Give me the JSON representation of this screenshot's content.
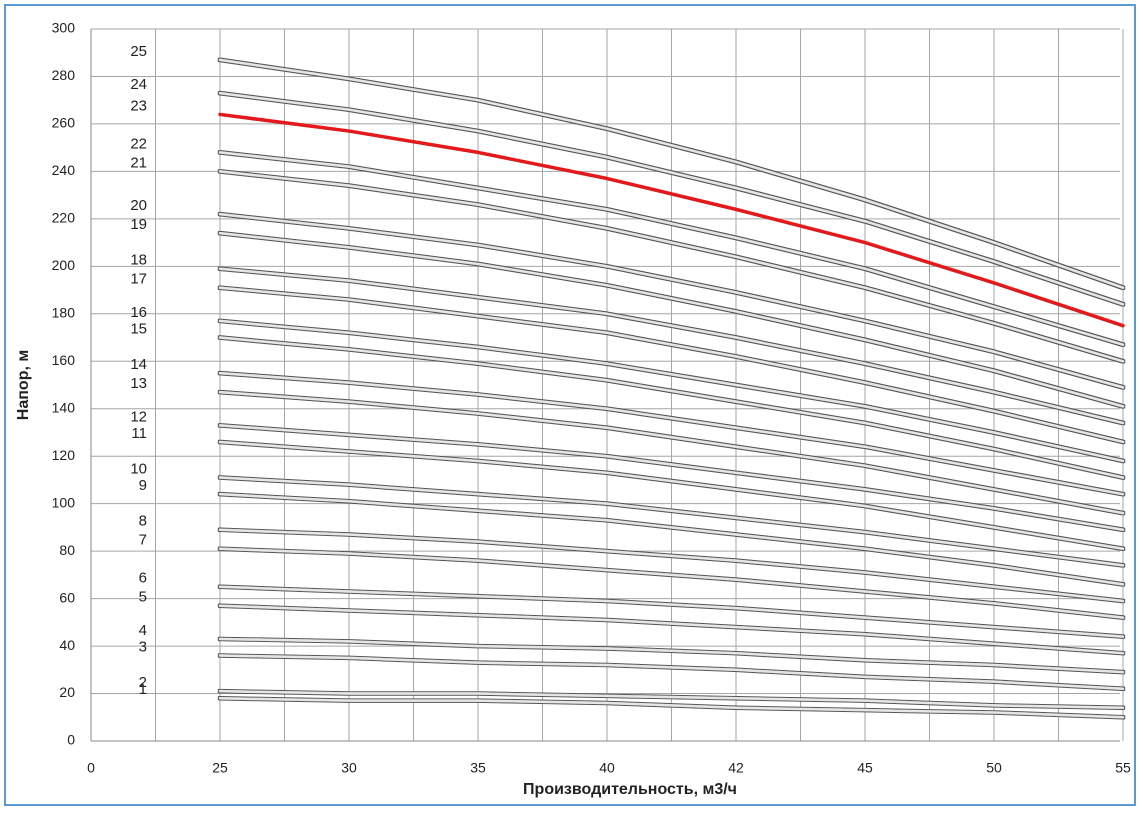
{
  "chart_data": {
    "type": "line",
    "x_label": "Производительность, м3/ч",
    "y_label": "Напор, м",
    "categories": [
      "0",
      "25",
      "30",
      "35",
      "40",
      "42",
      "45",
      "50",
      "55"
    ],
    "ylim": [
      0,
      300
    ],
    "yticks": [
      0,
      20,
      40,
      60,
      80,
      100,
      120,
      140,
      160,
      180,
      200,
      220,
      240,
      260,
      280,
      300
    ],
    "grid": true,
    "series": [
      {
        "name": "1",
        "color": "#e6e6e6",
        "values": [
          null,
          18,
          17,
          17,
          16,
          14,
          13,
          12,
          10
        ]
      },
      {
        "name": "2",
        "color": "#e6e6e6",
        "values": [
          null,
          21,
          20,
          20,
          19,
          18,
          17,
          15,
          14
        ]
      },
      {
        "name": "3",
        "color": "#e6e6e6",
        "values": [
          null,
          36,
          35,
          33,
          32,
          30,
          27,
          25,
          22
        ]
      },
      {
        "name": "4",
        "color": "#e6e6e6",
        "values": [
          null,
          43,
          42,
          40,
          39,
          37,
          34,
          32,
          29
        ]
      },
      {
        "name": "5",
        "color": "#e6e6e6",
        "values": [
          null,
          57,
          55,
          53,
          51,
          48,
          45,
          41,
          37
        ]
      },
      {
        "name": "6",
        "color": "#e6e6e6",
        "values": [
          null,
          65,
          63,
          61,
          59,
          56,
          52,
          48,
          44
        ]
      },
      {
        "name": "7",
        "color": "#e6e6e6",
        "values": [
          null,
          81,
          79,
          76,
          72,
          68,
          63,
          58,
          52
        ]
      },
      {
        "name": "8",
        "color": "#e6e6e6",
        "values": [
          null,
          89,
          87,
          84,
          80,
          76,
          71,
          65,
          59
        ]
      },
      {
        "name": "9",
        "color": "#e6e6e6",
        "values": [
          null,
          104,
          101,
          97,
          93,
          87,
          81,
          74,
          66
        ]
      },
      {
        "name": "10",
        "color": "#e6e6e6",
        "values": [
          null,
          111,
          108,
          104,
          100,
          94,
          88,
          81,
          74
        ]
      },
      {
        "name": "11",
        "color": "#e6e6e6",
        "values": [
          null,
          126,
          122,
          118,
          113,
          106,
          99,
          90,
          81
        ]
      },
      {
        "name": "12",
        "color": "#e6e6e6",
        "values": [
          null,
          133,
          129,
          125,
          120,
          113,
          106,
          98,
          89
        ]
      },
      {
        "name": "13",
        "color": "#e6e6e6",
        "values": [
          null,
          147,
          143,
          138,
          132,
          124,
          116,
          106,
          96
        ]
      },
      {
        "name": "14",
        "color": "#e6e6e6",
        "values": [
          null,
          155,
          151,
          146,
          140,
          132,
          124,
          114,
          104
        ]
      },
      {
        "name": "15",
        "color": "#e6e6e6",
        "values": [
          null,
          170,
          165,
          159,
          152,
          143,
          134,
          123,
          111
        ]
      },
      {
        "name": "16",
        "color": "#e6e6e6",
        "values": [
          null,
          177,
          172,
          166,
          159,
          150,
          141,
          130,
          118
        ]
      },
      {
        "name": "17",
        "color": "#e6e6e6",
        "values": [
          null,
          191,
          186,
          179,
          172,
          162,
          151,
          139,
          126
        ]
      },
      {
        "name": "18",
        "color": "#e6e6e6",
        "values": [
          null,
          199,
          194,
          187,
          180,
          170,
          159,
          147,
          134
        ]
      },
      {
        "name": "19",
        "color": "#e6e6e6",
        "values": [
          null,
          214,
          208,
          201,
          192,
          181,
          169,
          156,
          141
        ]
      },
      {
        "name": "20",
        "color": "#e6e6e6",
        "values": [
          null,
          222,
          216,
          209,
          200,
          189,
          177,
          164,
          149
        ]
      },
      {
        "name": "21",
        "color": "#e6e6e6",
        "values": [
          null,
          240,
          234,
          226,
          216,
          204,
          191,
          176,
          160
        ]
      },
      {
        "name": "22",
        "color": "#e6e6e6",
        "values": [
          null,
          248,
          242,
          233,
          224,
          212,
          199,
          183,
          167
        ]
      },
      {
        "name": "23",
        "color": "#e3191c",
        "values": [
          null,
          264,
          257,
          248,
          237,
          224,
          210,
          193,
          175
        ]
      },
      {
        "name": "24",
        "color": "#e6e6e6",
        "values": [
          null,
          273,
          266,
          257,
          246,
          233,
          219,
          202,
          184
        ]
      },
      {
        "name": "25",
        "color": "#e6e6e6",
        "values": [
          null,
          287,
          279,
          270,
          258,
          244,
          228,
          210,
          191
        ]
      }
    ]
  }
}
